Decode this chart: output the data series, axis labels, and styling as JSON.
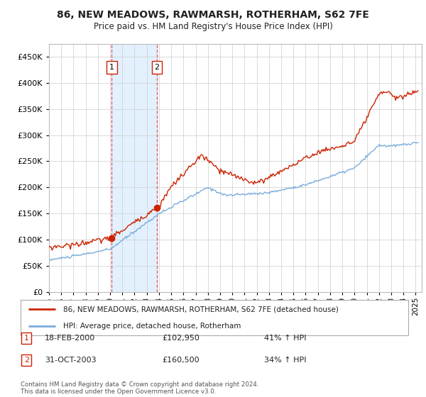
{
  "title": "86, NEW MEADOWS, RAWMARSH, ROTHERHAM, S62 7FE",
  "subtitle": "Price paid vs. HM Land Registry's House Price Index (HPI)",
  "legend_line1": "86, NEW MEADOWS, RAWMARSH, ROTHERHAM, S62 7FE (detached house)",
  "legend_line2": "HPI: Average price, detached house, Rotherham",
  "transaction1_date": "18-FEB-2000",
  "transaction1_price": 102950,
  "transaction1_hpi": "41% ↑ HPI",
  "transaction2_date": "31-OCT-2003",
  "transaction2_price": 160500,
  "transaction2_hpi": "34% ↑ HPI",
  "footer": "Contains HM Land Registry data © Crown copyright and database right 2024.\nThis data is licensed under the Open Government Licence v3.0.",
  "hpi_color": "#7aacdc",
  "price_color": "#cc2200",
  "marker_color": "#cc2200",
  "shade_color": "#ddeeff",
  "vline_color": "#dd4444",
  "ylim": [
    0,
    475000
  ],
  "xlim_left": 1995.0,
  "xlim_right": 2025.5,
  "background_color": "#ffffff",
  "grid_color": "#cccccc",
  "t1_year": 2000.131,
  "t2_year": 2003.831,
  "t1_price": 102950,
  "t2_price": 160500
}
